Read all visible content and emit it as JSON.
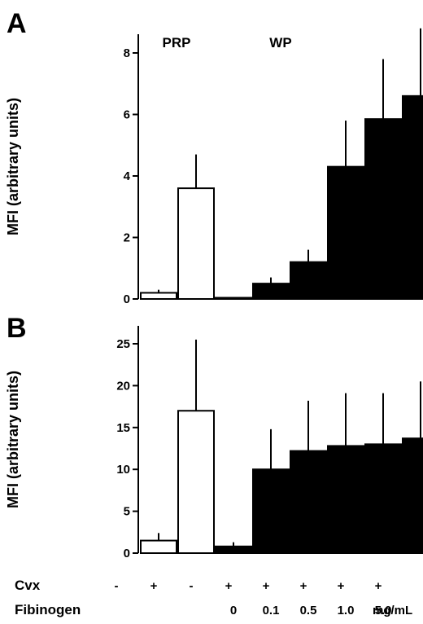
{
  "chart_data": [
    {
      "type": "bar",
      "panel": "A",
      "ylabel": "MFI (arbitrary units)",
      "ylim": [
        0,
        8
      ],
      "yticks": [
        0,
        2,
        4,
        6,
        8
      ],
      "group_labels": [
        "PRP",
        "WP"
      ],
      "bars": [
        {
          "value": 0.2,
          "error": 0.1,
          "fill": "open"
        },
        {
          "value": 3.6,
          "error": 1.1,
          "fill": "open"
        },
        {
          "value": 0.03,
          "error": 0.02,
          "fill": "solid"
        },
        {
          "value": 0.5,
          "error": 0.2,
          "fill": "solid"
        },
        {
          "value": 1.2,
          "error": 0.4,
          "fill": "solid"
        },
        {
          "value": 4.3,
          "error": 1.5,
          "fill": "solid"
        },
        {
          "value": 5.85,
          "error": 1.95,
          "fill": "solid"
        },
        {
          "value": 6.6,
          "error": 2.2,
          "fill": "solid"
        }
      ]
    },
    {
      "type": "bar",
      "panel": "B",
      "ylabel": "MFI (arbitrary units)",
      "ylim": [
        0,
        25
      ],
      "yticks": [
        0,
        5,
        10,
        15,
        20,
        25
      ],
      "bars": [
        {
          "value": 1.5,
          "error": 0.9,
          "fill": "open"
        },
        {
          "value": 17.0,
          "error": 8.5,
          "fill": "open"
        },
        {
          "value": 0.8,
          "error": 0.5,
          "fill": "solid"
        },
        {
          "value": 10.0,
          "error": 4.8,
          "fill": "solid"
        },
        {
          "value": 12.2,
          "error": 6.0,
          "fill": "solid"
        },
        {
          "value": 12.8,
          "error": 6.3,
          "fill": "solid"
        },
        {
          "value": 13.0,
          "error": 6.1,
          "fill": "solid"
        },
        {
          "value": 13.7,
          "error": 6.8,
          "fill": "solid"
        }
      ]
    }
  ],
  "conditions": {
    "cvx_label": "Cvx",
    "cvx": [
      "-",
      "+",
      "-",
      "+",
      "+",
      "+",
      "+",
      "+"
    ],
    "fibrinogen_label": "Fibinogen",
    "fibrinogen": [
      "",
      "",
      "",
      "0",
      "0.1",
      "0.5",
      "1.0",
      "5.0"
    ],
    "unit": "mg/mL"
  },
  "colors": {
    "solid": "#000000",
    "open": "#ffffff",
    "stroke": "#000000"
  }
}
